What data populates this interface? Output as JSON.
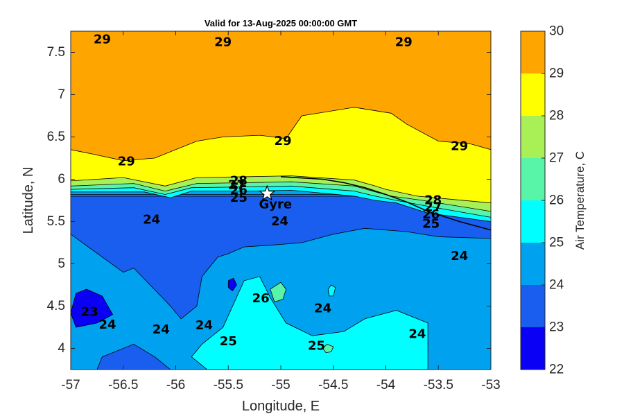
{
  "chart_data": {
    "type": "contour map",
    "title": "Valid for 13-Aug-2025 00:00:00 GMT",
    "xlabel": "Longitude, E",
    "ylabel": "Latitude, N",
    "xlim": [
      -57,
      -53
    ],
    "ylim": [
      3.75,
      7.75
    ],
    "x_ticks": [
      "-57",
      "-56.5",
      "-56",
      "-55.5",
      "-55",
      "-54.5",
      "-54",
      "-53.5",
      "-53"
    ],
    "y_ticks": [
      "7.5",
      "7",
      "6.5",
      "6",
      "5.5",
      "5",
      "4.5",
      "4"
    ],
    "colorbar": {
      "label": "Air Temperature, C",
      "levels": [
        22,
        23,
        24,
        25,
        26,
        27,
        28,
        29,
        30
      ],
      "tick_labels": [
        "30",
        "29",
        "28",
        "27",
        "26",
        "25",
        "24",
        "23",
        "22"
      ],
      "colors": [
        "#0a00f5",
        "#1a5ef0",
        "#00a2f0",
        "#00ffff",
        "#58f5a8",
        "#a8f055",
        "#ffff00",
        "#ffa500",
        "#ff5500"
      ]
    },
    "marker": {
      "label": "Gyre",
      "lon": -55.13,
      "lat": 5.83,
      "symbol": "star"
    },
    "contour_labels": [
      {
        "text": "29",
        "lon": -56.7,
        "lat": 7.65
      },
      {
        "text": "29",
        "lon": -55.55,
        "lat": 7.62
      },
      {
        "text": "29",
        "lon": -53.83,
        "lat": 7.62
      },
      {
        "text": "29",
        "lon": -54.98,
        "lat": 6.45
      },
      {
        "text": "29",
        "lon": -56.47,
        "lat": 6.21
      },
      {
        "text": "29",
        "lon": -53.3,
        "lat": 6.39
      },
      {
        "text": "28",
        "lon": -55.4,
        "lat": 5.98
      },
      {
        "text": "27",
        "lon": -55.42,
        "lat": 5.93
      },
      {
        "text": "26",
        "lon": -55.4,
        "lat": 5.87
      },
      {
        "text": "25",
        "lon": -55.4,
        "lat": 5.78
      },
      {
        "text": "28",
        "lon": -53.55,
        "lat": 5.75
      },
      {
        "text": "27",
        "lon": -53.55,
        "lat": 5.67
      },
      {
        "text": "26",
        "lon": -53.57,
        "lat": 5.58
      },
      {
        "text": "25",
        "lon": -53.57,
        "lat": 5.47
      },
      {
        "text": "24",
        "lon": -56.23,
        "lat": 5.52
      },
      {
        "text": "24",
        "lon": -55.01,
        "lat": 5.5
      },
      {
        "text": "24",
        "lon": -53.3,
        "lat": 5.09
      },
      {
        "text": "23",
        "lon": -56.82,
        "lat": 4.43
      },
      {
        "text": "24",
        "lon": -56.65,
        "lat": 4.28
      },
      {
        "text": "24",
        "lon": -56.14,
        "lat": 4.22
      },
      {
        "text": "24",
        "lon": -55.73,
        "lat": 4.27
      },
      {
        "text": "26",
        "lon": -55.19,
        "lat": 4.59
      },
      {
        "text": "25",
        "lon": -55.5,
        "lat": 4.08
      },
      {
        "text": "24",
        "lon": -54.6,
        "lat": 4.47
      },
      {
        "text": "25",
        "lon": -54.66,
        "lat": 4.03
      },
      {
        "text": "24",
        "lon": -53.7,
        "lat": 4.17
      }
    ],
    "zones": [
      {
        "level": 22,
        "region": [
          [
            -57,
            3.75
          ],
          [
            -53,
            3.75
          ],
          [
            -53,
            7.75
          ],
          [
            -57,
            7.75
          ]
        ]
      },
      {
        "level": 23,
        "region": [
          [
            -57,
            3.75
          ],
          [
            -53,
            3.75
          ],
          [
            -53,
            5.8
          ],
          [
            -57,
            5.8
          ]
        ]
      },
      {
        "level": 24,
        "region": [
          [
            -57,
            3.75
          ],
          [
            -56.75,
            3.75
          ],
          [
            -56.7,
            3.9
          ],
          [
            -56.4,
            4.05
          ],
          [
            -56.2,
            3.9
          ],
          [
            -56.05,
            3.75
          ],
          [
            -53,
            3.75
          ],
          [
            -53,
            5.3
          ],
          [
            -53.5,
            5.32
          ],
          [
            -53.8,
            5.38
          ],
          [
            -54.2,
            5.42
          ],
          [
            -54.5,
            5.35
          ],
          [
            -54.8,
            5.25
          ],
          [
            -55.1,
            5.22
          ],
          [
            -55.35,
            5.2
          ],
          [
            -55.5,
            5.12
          ],
          [
            -55.6,
            5.08
          ],
          [
            -55.75,
            4.85
          ],
          [
            -55.8,
            4.5
          ],
          [
            -55.95,
            4.35
          ],
          [
            -56.05,
            4.5
          ],
          [
            -56.4,
            4.95
          ],
          [
            -56.5,
            4.9
          ],
          [
            -57,
            5.35
          ],
          [
            -57,
            5.8
          ],
          [
            -53,
            5.8
          ],
          [
            -53,
            7.75
          ],
          [
            -57,
            7.75
          ]
        ]
      },
      {
        "level": 25,
        "region": [
          [
            -55.7,
            3.75
          ],
          [
            -53.6,
            3.75
          ],
          [
            -53.6,
            4.3
          ],
          [
            -53.9,
            4.45
          ],
          [
            -54.2,
            4.35
          ],
          [
            -54.4,
            4.2
          ],
          [
            -54.7,
            4.15
          ],
          [
            -54.95,
            4.3
          ],
          [
            -55.1,
            4.6
          ],
          [
            -55.2,
            4.85
          ],
          [
            -55.35,
            4.8
          ],
          [
            -55.55,
            4.25
          ],
          [
            -55.75,
            4.05
          ],
          [
            -55.85,
            3.9
          ]
        ]
      },
      {
        "level": 24,
        "region": [
          [
            -57,
            5.82
          ],
          [
            -53,
            5.82
          ],
          [
            -53,
            7.75
          ],
          [
            -57,
            7.75
          ]
        ]
      },
      {
        "level": 25,
        "region": [
          [
            -57,
            5.85
          ],
          [
            -56.3,
            5.85
          ],
          [
            -56.05,
            5.78
          ],
          [
            -55.85,
            5.86
          ],
          [
            -55.3,
            5.86
          ],
          [
            -54.9,
            5.87
          ],
          [
            -54.3,
            5.8
          ],
          [
            -54.1,
            5.75
          ],
          [
            -53.9,
            5.72
          ],
          [
            -53.6,
            5.6
          ],
          [
            -53,
            5.5
          ],
          [
            -53,
            7.75
          ],
          [
            -57,
            7.75
          ]
        ]
      },
      {
        "level": 26,
        "region": [
          [
            -57,
            5.88
          ],
          [
            -56.4,
            5.9
          ],
          [
            -56.1,
            5.82
          ],
          [
            -55.85,
            5.9
          ],
          [
            -55.3,
            5.91
          ],
          [
            -54.9,
            5.92
          ],
          [
            -54.3,
            5.86
          ],
          [
            -54.1,
            5.8
          ],
          [
            -53.9,
            5.75
          ],
          [
            -53.6,
            5.68
          ],
          [
            -53,
            5.55
          ],
          [
            -53,
            7.75
          ],
          [
            -57,
            7.75
          ]
        ]
      },
      {
        "level": 27,
        "region": [
          [
            -57,
            5.92
          ],
          [
            -56.4,
            5.95
          ],
          [
            -56.1,
            5.86
          ],
          [
            -55.8,
            5.95
          ],
          [
            -55.3,
            5.96
          ],
          [
            -54.9,
            5.97
          ],
          [
            -54.3,
            5.92
          ],
          [
            -54.1,
            5.85
          ],
          [
            -53.95,
            5.8
          ],
          [
            -53.65,
            5.75
          ],
          [
            -53,
            5.62
          ],
          [
            -53,
            7.75
          ],
          [
            -57,
            7.75
          ]
        ]
      },
      {
        "level": 28,
        "region": [
          [
            -57,
            5.98
          ],
          [
            -56.5,
            6.02
          ],
          [
            -56.1,
            5.92
          ],
          [
            -55.8,
            6.02
          ],
          [
            -55.3,
            6.03
          ],
          [
            -54.9,
            6.04
          ],
          [
            -54.3,
            5.99
          ],
          [
            -54.1,
            5.92
          ],
          [
            -54,
            5.88
          ],
          [
            -53.7,
            5.8
          ],
          [
            -53,
            5.72
          ],
          [
            -53,
            7.75
          ],
          [
            -57,
            7.75
          ]
        ]
      },
      {
        "level": 29,
        "region": [
          [
            -57,
            6.35
          ],
          [
            -56.8,
            6.3
          ],
          [
            -56.5,
            6.22
          ],
          [
            -56.2,
            6.25
          ],
          [
            -56,
            6.35
          ],
          [
            -55.8,
            6.45
          ],
          [
            -55.55,
            6.5
          ],
          [
            -55.2,
            6.52
          ],
          [
            -54.95,
            6.48
          ],
          [
            -54.8,
            6.75
          ],
          [
            -54.3,
            6.85
          ],
          [
            -53.95,
            6.78
          ],
          [
            -53.8,
            6.65
          ],
          [
            -53.5,
            6.45
          ],
          [
            -53.2,
            6.42
          ],
          [
            -53,
            6.35
          ],
          [
            -53,
            7.75
          ],
          [
            -57,
            7.75
          ]
        ]
      },
      {
        "level": 22,
        "region": [
          [
            -57,
            4.42
          ],
          [
            -56.95,
            4.65
          ],
          [
            -56.85,
            4.7
          ],
          [
            -56.7,
            4.62
          ],
          [
            -56.6,
            4.4
          ],
          [
            -56.75,
            4.3
          ],
          [
            -56.95,
            4.25
          ]
        ]
      },
      {
        "level": 26,
        "region": [
          [
            -55.1,
            4.7
          ],
          [
            -55.0,
            4.78
          ],
          [
            -54.95,
            4.7
          ],
          [
            -54.98,
            4.58
          ],
          [
            -55.06,
            4.55
          ]
        ]
      },
      {
        "level": 26,
        "region": [
          [
            -54.6,
            4.0
          ],
          [
            -54.56,
            4.05
          ],
          [
            -54.5,
            4.02
          ],
          [
            -54.52,
            3.96
          ],
          [
            -54.57,
            3.95
          ]
        ]
      },
      {
        "level": 22,
        "region": [
          [
            -55.5,
            4.8
          ],
          [
            -55.45,
            4.83
          ],
          [
            -55.42,
            4.75
          ],
          [
            -55.46,
            4.68
          ],
          [
            -55.5,
            4.72
          ]
        ]
      },
      {
        "level": 25,
        "region": [
          [
            -54.55,
            4.7
          ],
          [
            -54.52,
            4.75
          ],
          [
            -54.48,
            4.72
          ],
          [
            -54.5,
            4.62
          ],
          [
            -54.54,
            4.62
          ]
        ]
      }
    ],
    "coast_line": [
      [
        -55.0,
        6.03
      ],
      [
        -54.6,
        6.0
      ],
      [
        -54.4,
        5.96
      ],
      [
        -54.2,
        5.9
      ],
      [
        -54.0,
        5.82
      ],
      [
        -53.8,
        5.73
      ],
      [
        -53.6,
        5.62
      ],
      [
        -53.3,
        5.5
      ],
      [
        -53,
        5.4
      ]
    ]
  }
}
